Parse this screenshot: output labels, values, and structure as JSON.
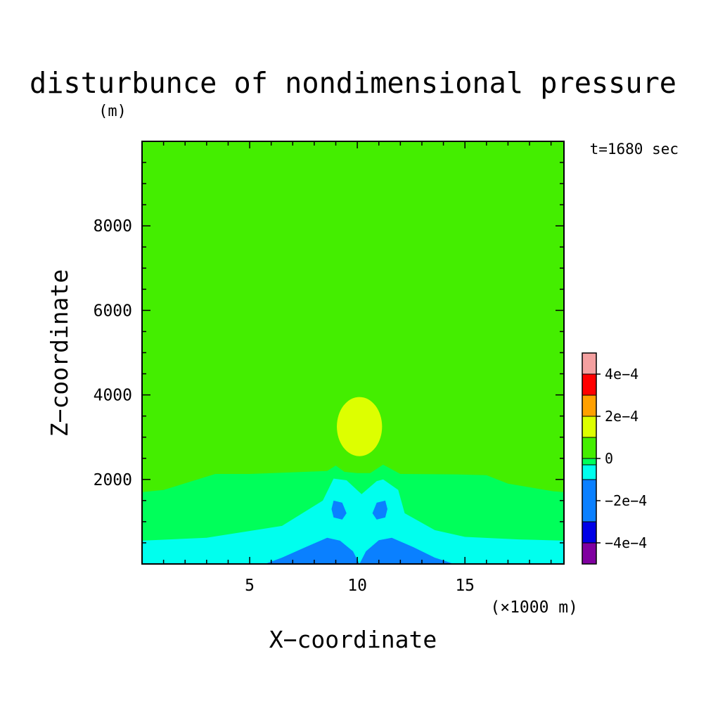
{
  "chart_data": {
    "type": "heatmap",
    "title": "disturbunce of nondimensional pressure",
    "ylabel_unit": "(m)",
    "xlabel": "X−coordinate",
    "ylabel": "Z−coordinate",
    "x_unit": "(×1000 m)",
    "annotation": "t=1680 sec",
    "xlim": [
      0,
      19.6
    ],
    "ylim": [
      0,
      10000
    ],
    "x_ticks": [
      {
        "value": 5,
        "label": "5"
      },
      {
        "value": 10,
        "label": "10"
      },
      {
        "value": 15,
        "label": "15"
      }
    ],
    "y_ticks": [
      {
        "value": 2000,
        "label": "2000"
      },
      {
        "value": 4000,
        "label": "4000"
      },
      {
        "value": 6000,
        "label": "6000"
      },
      {
        "value": 8000,
        "label": "8000"
      }
    ],
    "colorbar": {
      "levels": [
        {
          "range": [
            -0.0005,
            -0.0004
          ],
          "color": "#8000a0"
        },
        {
          "range": [
            -0.0004,
            -0.0003
          ],
          "color": "#0000e6"
        },
        {
          "range": [
            -0.0003,
            -0.0001
          ],
          "color": "#0a80ff"
        },
        {
          "range": [
            -0.0001,
            -3e-05
          ],
          "color": "#00ffee"
        },
        {
          "range": [
            -3e-05,
            0
          ],
          "color": "#00ff5a"
        },
        {
          "range": [
            0,
            0.0001
          ],
          "color": "#44ee00"
        },
        {
          "range": [
            0.0001,
            0.0002
          ],
          "color": "#ddff00"
        },
        {
          "range": [
            0.0002,
            0.0003
          ],
          "color": "#ffa000"
        },
        {
          "range": [
            0.0003,
            0.0004
          ],
          "color": "#ff0000"
        },
        {
          "range": [
            0.0004,
            0.0005
          ],
          "color": "#f4a0a0"
        }
      ],
      "tick_labels": [
        {
          "value": 0.0004,
          "label": "4e−4"
        },
        {
          "value": 0.0002,
          "label": "2e−4"
        },
        {
          "value": 0,
          "label": "0"
        },
        {
          "value": -0.0002,
          "label": "−2e−4"
        },
        {
          "value": -0.0004,
          "label": "−4e−4"
        }
      ],
      "range": [
        -0.0005,
        0.0005
      ]
    },
    "regions": [
      {
        "name": "background",
        "level_color": "#44ee00",
        "points": [
          [
            0,
            0
          ],
          [
            19.6,
            0
          ],
          [
            19.6,
            10000
          ],
          [
            0,
            10000
          ]
        ]
      },
      {
        "name": "lower-band",
        "level_color": "#00ff5a",
        "points": [
          [
            0,
            0
          ],
          [
            19.6,
            0
          ],
          [
            19.6,
            1700
          ],
          [
            19.1,
            1720
          ],
          [
            17,
            1900
          ],
          [
            16,
            2100
          ],
          [
            14.6,
            2120
          ],
          [
            12,
            2130
          ],
          [
            11.2,
            2350
          ],
          [
            10.9,
            2250
          ],
          [
            10.6,
            2150
          ],
          [
            10.0,
            2150
          ],
          [
            9.4,
            2180
          ],
          [
            9.0,
            2330
          ],
          [
            8.6,
            2200
          ],
          [
            5,
            2130
          ],
          [
            3.4,
            2130
          ],
          [
            1,
            1750
          ],
          [
            0,
            1700
          ]
        ]
      },
      {
        "name": "negative-layer",
        "level_color": "#00ffee",
        "points": [
          [
            0,
            0
          ],
          [
            19.6,
            0
          ],
          [
            19.6,
            550
          ],
          [
            17.5,
            580
          ],
          [
            15,
            640
          ],
          [
            13.6,
            800
          ],
          [
            12.2,
            1200
          ],
          [
            11.9,
            1750
          ],
          [
            11.2,
            2000
          ],
          [
            10.9,
            1960
          ],
          [
            10.2,
            1650
          ],
          [
            9.5,
            1980
          ],
          [
            8.9,
            2020
          ],
          [
            8.4,
            1500
          ],
          [
            6.5,
            900
          ],
          [
            3,
            620
          ],
          [
            0,
            550
          ]
        ]
      },
      {
        "name": "bottom-left-lobe",
        "level_color": "#0a80ff",
        "points": [
          [
            5.7,
            0
          ],
          [
            6.5,
            150
          ],
          [
            7.6,
            400
          ],
          [
            8.6,
            620
          ],
          [
            9.2,
            550
          ],
          [
            9.8,
            300
          ],
          [
            10.1,
            0
          ]
        ]
      },
      {
        "name": "bottom-right-lobe",
        "level_color": "#0a80ff",
        "points": [
          [
            10.1,
            0
          ],
          [
            10.4,
            300
          ],
          [
            11.0,
            560
          ],
          [
            11.6,
            620
          ],
          [
            12.6,
            400
          ],
          [
            13.6,
            150
          ],
          [
            14.5,
            0
          ]
        ]
      },
      {
        "name": "left-small-cell",
        "level_color": "#0a80ff",
        "points": [
          [
            8.9,
            1500
          ],
          [
            9.3,
            1450
          ],
          [
            9.5,
            1200
          ],
          [
            9.3,
            1050
          ],
          [
            8.9,
            1100
          ],
          [
            8.8,
            1300
          ]
        ]
      },
      {
        "name": "right-small-cell",
        "level_color": "#0a80ff",
        "points": [
          [
            11.3,
            1500
          ],
          [
            10.9,
            1450
          ],
          [
            10.7,
            1200
          ],
          [
            10.9,
            1050
          ],
          [
            11.3,
            1100
          ],
          [
            11.4,
            1300
          ]
        ]
      }
    ],
    "ellipses": [
      {
        "name": "positive-bubble",
        "level_color": "#ddff00",
        "cx": 10.1,
        "cy": 3250,
        "rx": 1.05,
        "ry": 700
      }
    ]
  }
}
